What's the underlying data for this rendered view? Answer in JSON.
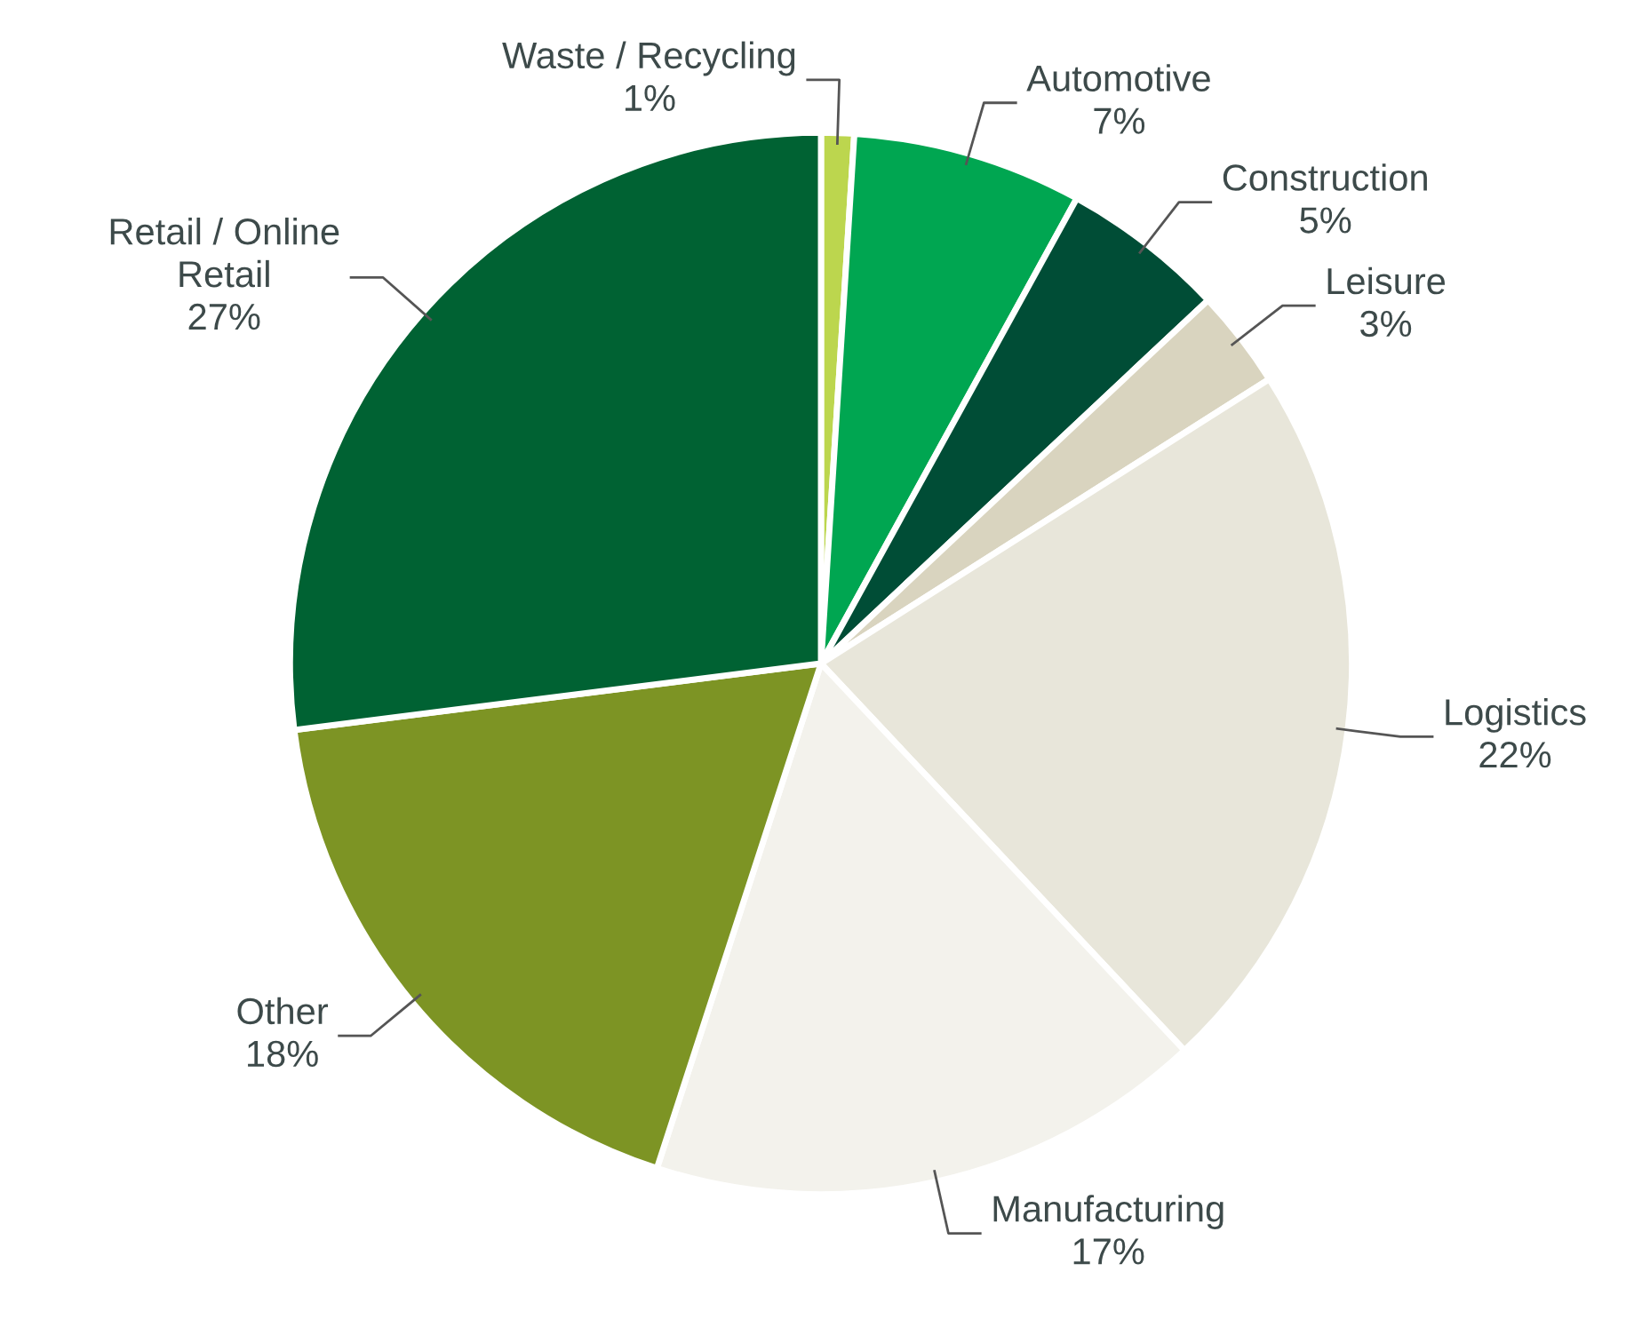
{
  "chart_data": {
    "type": "pie",
    "categories": [
      "Waste / Recycling",
      "Automotive",
      "Construction",
      "Leisure",
      "Logistics",
      "Manufacturing",
      "Other",
      "Retail / Online\nRetail"
    ],
    "values": [
      1,
      7,
      5,
      3,
      22,
      17,
      18,
      27
    ],
    "value_labels": [
      "1%",
      "7%",
      "5%",
      "3%",
      "22%",
      "17%",
      "18%",
      "27%"
    ],
    "colors": [
      "#bcd64e",
      "#00a651",
      "#004d36",
      "#d9d4bf",
      "#e8e6da",
      "#f3f2ec",
      "#7d9424",
      "#006233"
    ],
    "legend": false
  }
}
